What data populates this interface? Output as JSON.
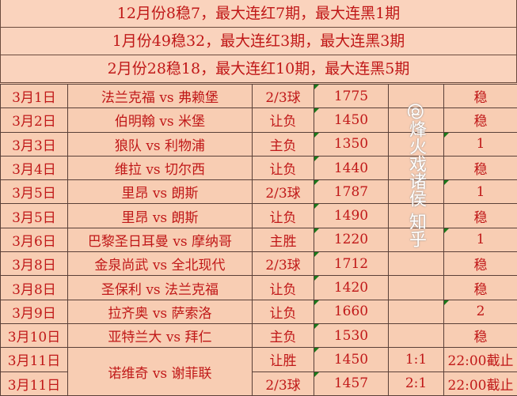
{
  "summaries": [
    "12月份8稳7，最大连红7期，最大连黑1期",
    "1月份49稳32，最大连红3期，最大连黑3期",
    "2月份28稳18，最大连红10期，最大连黑5期"
  ],
  "rows": [
    {
      "date": "3月1日",
      "match": "法兰克福 vs 弗赖堡",
      "type": "2/3球",
      "num": "1775",
      "score": "",
      "result": "稳"
    },
    {
      "date": "3月2日",
      "match": "伯明翰 vs 米堡",
      "type": "让负",
      "num": "1450",
      "score": "",
      "result": "稳"
    },
    {
      "date": "3月3日",
      "match": "狼队 vs 利物浦",
      "type": "主负",
      "num": "1350",
      "score": "",
      "result": "1"
    },
    {
      "date": "3月4日",
      "match": "维拉 vs 切尔西",
      "type": "让负",
      "num": "1440",
      "score": "",
      "result": "稳"
    },
    {
      "date": "3月5日",
      "match": "里昂 vs 朗斯",
      "type": "2/3球",
      "num": "1787",
      "score": "",
      "result": "1"
    },
    {
      "date": "3月5日",
      "match": "里昂 vs 朗斯",
      "type": "让负",
      "num": "1490",
      "score": "",
      "result": "稳"
    },
    {
      "date": "3月6日",
      "match": "巴黎圣日耳曼 vs 摩纳哥",
      "type": "主胜",
      "num": "1220",
      "score": "",
      "result": "1"
    },
    {
      "date": "3月8日",
      "match": "金泉尚武 vs 全北现代",
      "type": "2/3球",
      "num": "1712",
      "score": "",
      "result": "稳"
    },
    {
      "date": "3月8日",
      "match": "圣保利 vs 法兰克福",
      "type": "让负",
      "num": "1420",
      "score": "",
      "result": "稳"
    },
    {
      "date": "3月9日",
      "match": "拉齐奥 vs 萨索洛",
      "type": "让负",
      "num": "1660",
      "score": "",
      "result": "2"
    },
    {
      "date": "3月10日",
      "match": "亚特兰大 vs 拜仁",
      "type": "主负",
      "num": "1530",
      "score": "",
      "result": "稳"
    },
    {
      "date": "3月11日",
      "match": "诺维奇 vs 谢菲联",
      "type": "让胜",
      "num": "1450",
      "score": "1:1",
      "result": "22:00截止"
    },
    {
      "date": "3月11日",
      "match": "",
      "type": "2/3球",
      "num": "1457",
      "score": "2:1",
      "result": "22:00截止"
    }
  ],
  "watermark": "@烽火戏诸侯 知乎"
}
